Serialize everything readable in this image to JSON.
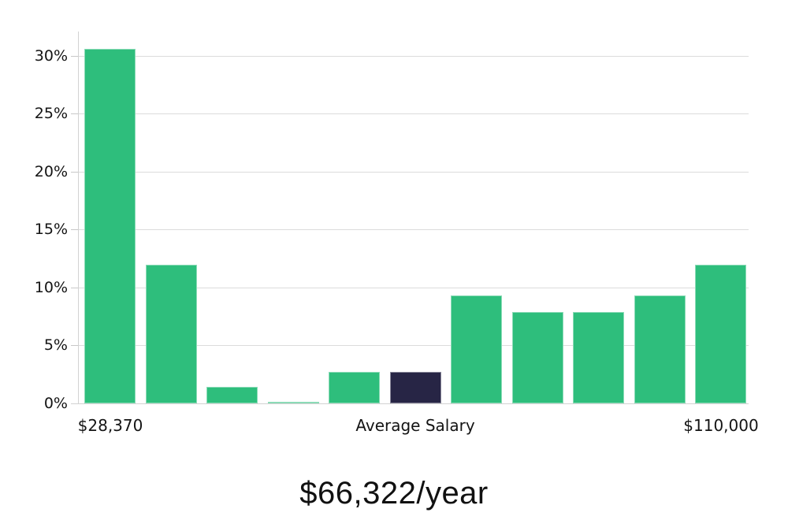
{
  "chart_data": {
    "type": "bar",
    "title": "",
    "caption": "$66,322/year",
    "values": [
      30.6,
      12.0,
      1.4,
      0.1,
      2.7,
      2.7,
      9.3,
      7.9,
      7.9,
      9.3,
      12.0
    ],
    "categories": [
      "",
      "",
      "",
      "",
      "",
      "",
      "",
      "",
      "",
      "",
      ""
    ],
    "y_ticks": [
      {
        "value": 0,
        "label": "0%"
      },
      {
        "value": 5,
        "label": "5%"
      },
      {
        "value": 10,
        "label": "10%"
      },
      {
        "value": 15,
        "label": "15%"
      },
      {
        "value": 20,
        "label": "20%"
      },
      {
        "value": 25,
        "label": "25%"
      },
      {
        "value": 30,
        "label": "30%"
      }
    ],
    "ylim": [
      0,
      32.1
    ],
    "xlabel": "",
    "ylabel": "",
    "grid": true,
    "legend": false,
    "bar_color": "#2ebe7c",
    "highlight_bar_index": 5,
    "highlight_bar_color": "#272545",
    "x_axis_labels": [
      {
        "text": "$28,370",
        "bar_index": 0
      },
      {
        "text": "Average Salary",
        "bar_index": 5
      },
      {
        "text": "$110,000",
        "bar_index": 10
      }
    ]
  }
}
